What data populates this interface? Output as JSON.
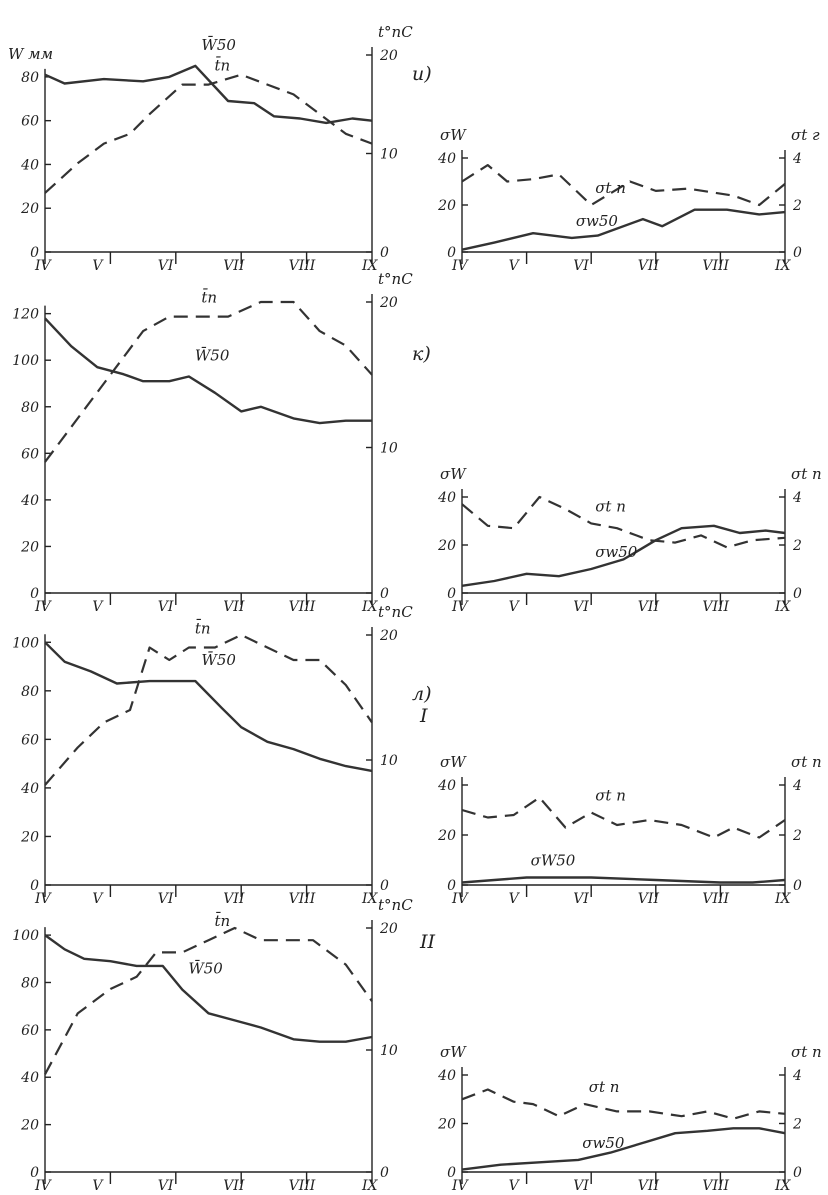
{
  "chart_data": [
    {
      "type": "line",
      "section": "и)",
      "panel": "left",
      "y_label": "W мм",
      "y2_label": "t°пC",
      "months": [
        "IV",
        "V",
        "VI",
        "VII",
        "VIII",
        "IX"
      ],
      "yticks": [
        0,
        20,
        40,
        60,
        80
      ],
      "y2ticks": [
        0,
        10,
        20
      ],
      "ylim": [
        0,
        90
      ],
      "y2lim": [
        0,
        20
      ],
      "series": [
        {
          "name": "W̄50",
          "style": "solid",
          "axis": "y",
          "x": [
            0.0,
            0.3,
            0.9,
            1.5,
            1.9,
            2.3,
            2.8,
            3.2,
            3.5,
            3.9,
            4.3,
            4.7,
            5.0
          ],
          "values": [
            81,
            77,
            79,
            78,
            80,
            85,
            69,
            68,
            62,
            61,
            59,
            61,
            60
          ]
        },
        {
          "name": "t̄п",
          "style": "dashed",
          "axis": "y2",
          "x": [
            0.0,
            0.5,
            0.9,
            1.3,
            1.6,
            2.1,
            2.5,
            3.0,
            3.4,
            3.8,
            4.2,
            4.6,
            5.0
          ],
          "values": [
            6,
            9,
            11,
            12,
            14,
            17,
            17,
            18,
            17,
            16,
            14,
            12,
            11
          ]
        }
      ]
    },
    {
      "type": "line",
      "section": "и)",
      "panel": "right",
      "y_label": "σW",
      "y2_label": "σt г",
      "months": [
        "IV",
        "V",
        "VI",
        "VII",
        "VIII",
        "IX"
      ],
      "yticks": [
        0,
        20,
        40
      ],
      "y2ticks": [
        0,
        2,
        4
      ],
      "ylim": [
        0,
        40
      ],
      "y2lim": [
        0,
        4
      ],
      "series": [
        {
          "name": "σt п",
          "style": "dashed",
          "axis": "y2",
          "x": [
            0.0,
            0.4,
            0.7,
            1.1,
            1.5,
            2.0,
            2.6,
            3.0,
            3.5,
            4.2,
            4.6,
            5.0
          ],
          "values": [
            3.0,
            3.7,
            3.0,
            3.1,
            3.3,
            2.0,
            3.0,
            2.6,
            2.7,
            2.4,
            2.0,
            2.9
          ]
        },
        {
          "name": "σw50",
          "style": "solid",
          "axis": "y",
          "x": [
            0.0,
            0.5,
            1.1,
            1.7,
            2.1,
            2.8,
            3.1,
            3.6,
            4.1,
            4.6,
            5.0
          ],
          "values": [
            1,
            4,
            8,
            6,
            7,
            14,
            11,
            18,
            18,
            16,
            17
          ]
        }
      ]
    },
    {
      "type": "line",
      "section": "к)",
      "panel": "left",
      "y_label": "",
      "y2_label": "t°пC",
      "months": [
        "IV",
        "V",
        "VI",
        "VII",
        "VIII",
        "IX"
      ],
      "yticks": [
        0,
        20,
        40,
        60,
        80,
        100,
        120
      ],
      "y2ticks": [
        0,
        10,
        20
      ],
      "ylim": [
        0,
        125
      ],
      "y2lim": [
        0,
        20
      ],
      "series": [
        {
          "name": "W̄50",
          "style": "solid",
          "axis": "y",
          "x": [
            0.0,
            0.4,
            0.8,
            1.2,
            1.5,
            1.9,
            2.2,
            2.6,
            3.0,
            3.3,
            3.8,
            4.2,
            4.6,
            5.0
          ],
          "values": [
            118,
            106,
            97,
            94,
            91,
            91,
            93,
            86,
            78,
            80,
            75,
            73,
            74,
            74
          ]
        },
        {
          "name": "t̄п",
          "style": "dashed",
          "axis": "y2",
          "x": [
            0.0,
            0.5,
            1.0,
            1.5,
            1.9,
            2.3,
            2.8,
            3.3,
            3.8,
            4.2,
            4.6,
            5.0
          ],
          "values": [
            9,
            12,
            15,
            18,
            19,
            19,
            19,
            20,
            20,
            18,
            17,
            15
          ]
        }
      ]
    },
    {
      "type": "line",
      "section": "к)",
      "panel": "right",
      "y_label": "σW",
      "y2_label": "σt п",
      "months": [
        "IV",
        "V",
        "VI",
        "VII",
        "VIII",
        "IX"
      ],
      "yticks": [
        0,
        20,
        40
      ],
      "y2ticks": [
        0,
        2,
        4
      ],
      "ylim": [
        0,
        40
      ],
      "y2lim": [
        0,
        4
      ],
      "series": [
        {
          "name": "σt п",
          "style": "dashed",
          "axis": "y2",
          "x": [
            0.0,
            0.4,
            0.8,
            1.2,
            1.6,
            2.0,
            2.4,
            2.9,
            3.3,
            3.7,
            4.1,
            4.5,
            5.0
          ],
          "values": [
            3.7,
            2.8,
            2.7,
            4.0,
            3.5,
            2.9,
            2.7,
            2.2,
            2.1,
            2.4,
            1.9,
            2.2,
            2.3
          ]
        },
        {
          "name": "σw50",
          "style": "solid",
          "axis": "y",
          "x": [
            0.0,
            0.5,
            1.0,
            1.5,
            2.0,
            2.5,
            3.0,
            3.4,
            3.9,
            4.3,
            4.7,
            5.0
          ],
          "values": [
            3,
            5,
            8,
            7,
            10,
            14,
            22,
            27,
            28,
            25,
            26,
            25
          ]
        }
      ]
    },
    {
      "type": "line",
      "section": "л)",
      "subsection": "I",
      "panel": "left",
      "y_label": "",
      "y2_label": "t°пC",
      "months": [
        "IV",
        "V",
        "VI",
        "VII",
        "VIII",
        "IX"
      ],
      "yticks": [
        0,
        20,
        40,
        60,
        80,
        100
      ],
      "y2ticks": [
        0,
        10,
        20
      ],
      "ylim": [
        0,
        103
      ],
      "y2lim": [
        0,
        20
      ],
      "series": [
        {
          "name": "W̄50",
          "style": "solid",
          "axis": "y",
          "x": [
            0.0,
            0.3,
            0.7,
            1.1,
            1.6,
            2.0,
            2.3,
            2.7,
            3.0,
            3.4,
            3.8,
            4.2,
            4.6,
            5.0
          ],
          "values": [
            100,
            92,
            88,
            83,
            84,
            84,
            84,
            73,
            65,
            59,
            56,
            52,
            49,
            47
          ]
        },
        {
          "name": "t̄п",
          "style": "dashed",
          "axis": "y2",
          "x": [
            0.0,
            0.5,
            0.9,
            1.3,
            1.6,
            1.9,
            2.2,
            2.6,
            3.0,
            3.4,
            3.8,
            4.2,
            4.6,
            5.0
          ],
          "values": [
            8,
            11,
            13,
            14,
            19,
            18,
            19,
            19,
            20,
            19,
            18,
            18,
            16,
            13
          ]
        }
      ]
    },
    {
      "type": "line",
      "section": "л)",
      "subsection": "I",
      "panel": "right",
      "y_label": "σW",
      "y2_label": "σt п",
      "months": [
        "IV",
        "V",
        "VI",
        "VII",
        "VIII",
        "IX"
      ],
      "yticks": [
        0,
        20,
        40
      ],
      "y2ticks": [
        0,
        2,
        4
      ],
      "ylim": [
        0,
        40
      ],
      "y2lim": [
        0,
        4
      ],
      "series": [
        {
          "name": "σt п",
          "style": "dashed",
          "axis": "y2",
          "x": [
            0.0,
            0.4,
            0.8,
            1.2,
            1.6,
            2.0,
            2.4,
            2.9,
            3.4,
            3.9,
            4.2,
            4.6,
            5.0
          ],
          "values": [
            3.0,
            2.7,
            2.8,
            3.5,
            2.3,
            2.9,
            2.4,
            2.6,
            2.4,
            1.9,
            2.3,
            1.9,
            2.6
          ]
        },
        {
          "name": "σW50",
          "style": "solid",
          "axis": "y",
          "x": [
            0.0,
            0.5,
            1.0,
            2.0,
            3.0,
            4.0,
            4.5,
            5.0
          ],
          "values": [
            1,
            2,
            3,
            3,
            2,
            1,
            1,
            2
          ]
        }
      ]
    },
    {
      "type": "line",
      "section": "",
      "subsection": "II",
      "panel": "left",
      "y_label": "",
      "y2_label": "t°пC",
      "months": [
        "IV",
        "V",
        "VI",
        "VII",
        "VIII",
        "IX"
      ],
      "yticks": [
        0,
        20,
        40,
        60,
        80,
        100
      ],
      "y2ticks": [
        0,
        10,
        20
      ],
      "ylim": [
        0,
        103
      ],
      "y2lim": [
        0,
        20
      ],
      "series": [
        {
          "name": "W̄50",
          "style": "solid",
          "axis": "y",
          "x": [
            0.0,
            0.3,
            0.6,
            1.0,
            1.4,
            1.8,
            2.1,
            2.5,
            2.9,
            3.3,
            3.8,
            4.2,
            4.6,
            5.0
          ],
          "values": [
            100,
            94,
            90,
            89,
            87,
            87,
            77,
            67,
            64,
            61,
            56,
            55,
            55,
            57
          ]
        },
        {
          "name": "t̄п",
          "style": "dashed",
          "axis": "y2",
          "x": [
            0.0,
            0.5,
            1.0,
            1.4,
            1.7,
            2.1,
            2.5,
            2.9,
            3.3,
            3.7,
            4.1,
            4.6,
            5.0
          ],
          "values": [
            8,
            13,
            15,
            16,
            18,
            18,
            19,
            20,
            19,
            19,
            19,
            17,
            14
          ]
        }
      ]
    },
    {
      "type": "line",
      "section": "",
      "subsection": "II",
      "panel": "right",
      "y_label": "σW",
      "y2_label": "σt п",
      "months": [
        "IV",
        "V",
        "VI",
        "VII",
        "VIII",
        "IX"
      ],
      "yticks": [
        0,
        20,
        40
      ],
      "y2ticks": [
        0,
        2,
        4
      ],
      "ylim": [
        0,
        40
      ],
      "y2lim": [
        0,
        4
      ],
      "series": [
        {
          "name": "σt п",
          "style": "dashed",
          "axis": "y2",
          "x": [
            0.0,
            0.4,
            0.8,
            1.1,
            1.5,
            1.9,
            2.4,
            2.9,
            3.4,
            3.8,
            4.2,
            4.6,
            5.0
          ],
          "values": [
            3.0,
            3.4,
            2.9,
            2.8,
            2.3,
            2.8,
            2.5,
            2.5,
            2.3,
            2.5,
            2.2,
            2.5,
            2.4
          ]
        },
        {
          "name": "σw50",
          "style": "solid",
          "axis": "y",
          "x": [
            0.0,
            0.6,
            1.2,
            1.8,
            2.3,
            2.8,
            3.3,
            3.8,
            4.2,
            4.6,
            5.0
          ],
          "values": [
            1,
            3,
            4,
            5,
            8,
            12,
            16,
            17,
            18,
            18,
            16
          ]
        }
      ]
    }
  ]
}
